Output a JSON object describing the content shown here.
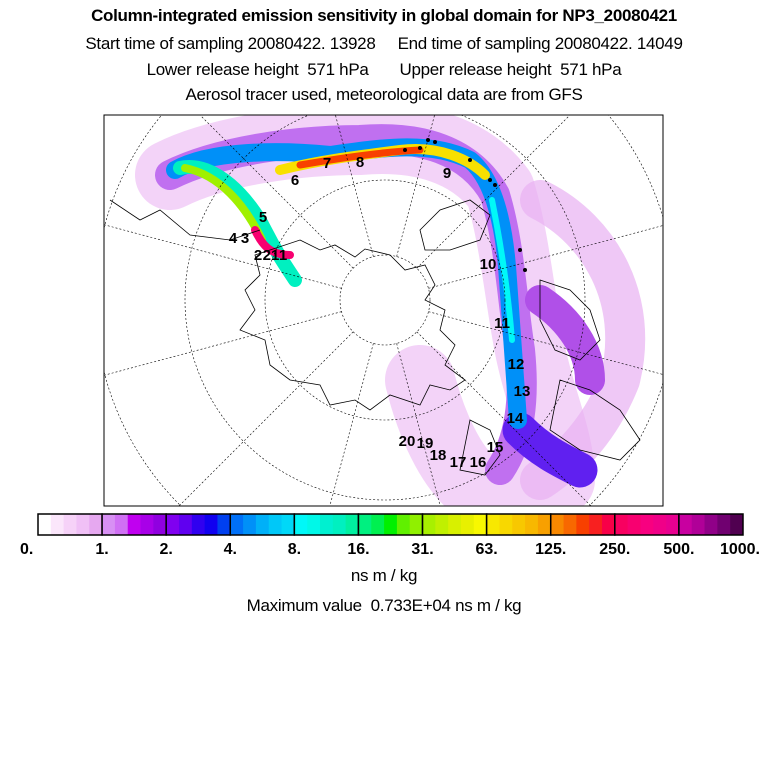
{
  "header": {
    "title": "Column-integrated emission sensitivity in global domain for NP3_20080421",
    "line1": "Start time of sampling 20080422. 13928     End time of sampling 20080422. 14049",
    "line2": "Lower release height  571 hPa       Upper release height  571 hPa",
    "line3": "Aerosol tracer used, meteorological data are from GFS"
  },
  "chart_data": {
    "type": "heatmap",
    "title": "Column-integrated emission sensitivity in global domain for NP3_20080421",
    "projection": "polar stereographic (north pole)",
    "colorbar": {
      "ticks": [
        "0.",
        "1.",
        "2.",
        "4.",
        "8.",
        "16.",
        "31.",
        "63.",
        "125.",
        "250.",
        "500.",
        "1000."
      ],
      "unit": "ns m / kg",
      "segment_colors": [
        [
          "#ffffff",
          "#fbe6fb",
          "#f6d2f8",
          "#f0c0f6",
          "#e6a8f0"
        ],
        [
          "#d890f4",
          "#d070f4",
          "#c000f0",
          "#a800e8",
          "#9000e0"
        ],
        [
          "#8000f0",
          "#6000f0",
          "#3000f0",
          "#1000f0",
          "#0040f0"
        ],
        [
          "#0070f8",
          "#0090f8",
          "#00b0f8",
          "#00c8f8",
          "#00d8f8"
        ],
        [
          "#00f8f8",
          "#00f8e8",
          "#00f0d0",
          "#00f0c0",
          "#00f0a0"
        ],
        [
          "#00f080",
          "#00f050",
          "#00f000",
          "#60f000",
          "#90f000"
        ],
        [
          "#a8f000",
          "#c0f000",
          "#d8f000",
          "#e8f000",
          "#f8f800"
        ],
        [
          "#f8e800",
          "#f8d800",
          "#f8c800",
          "#f8b800",
          "#f8a000"
        ],
        [
          "#f88800",
          "#f86800",
          "#f84000",
          "#f82020",
          "#f80048"
        ],
        [
          "#f80060",
          "#f80070",
          "#f80080",
          "#f00088",
          "#e80090"
        ],
        [
          "#c800a0",
          "#b00098",
          "#900088",
          "#700070",
          "#500050"
        ]
      ]
    },
    "max_value_text": "Maximum value  0.733E+04 ns m / kg",
    "trajectory_labels": [
      "1",
      "2",
      "3",
      "4",
      "5",
      "6",
      "7",
      "8",
      "9",
      "10",
      "11",
      "12",
      "13",
      "14",
      "15",
      "16",
      "17",
      "18",
      "19",
      "20",
      "21"
    ]
  }
}
